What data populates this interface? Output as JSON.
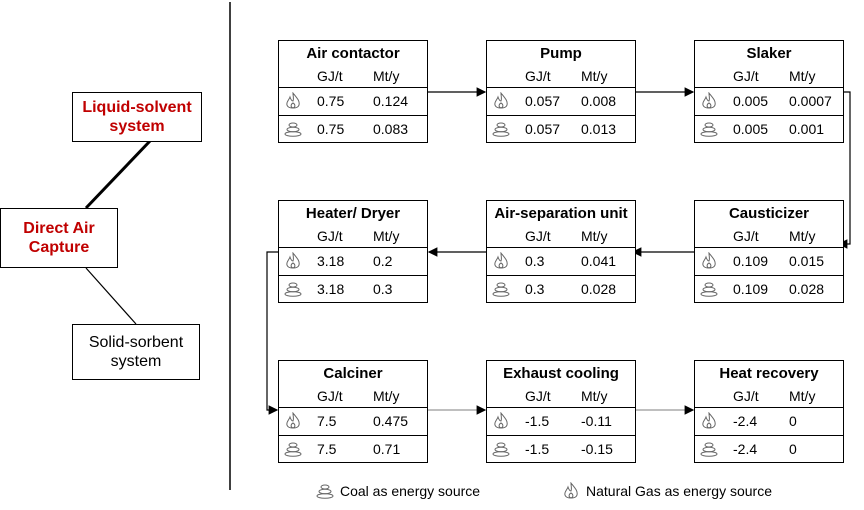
{
  "tree": {
    "root": "Direct Air Capture",
    "children": [
      "Liquid-solvent system",
      "Solid-sorbent system"
    ]
  },
  "columns": [
    "GJ/t",
    "Mt/y"
  ],
  "processes": [
    {
      "title": "Air contactor",
      "gas": [
        "0.75",
        "0.124"
      ],
      "coal": [
        "0.75",
        "0.083"
      ]
    },
    {
      "title": "Pump",
      "gas": [
        "0.057",
        "0.008"
      ],
      "coal": [
        "0.057",
        "0.013"
      ]
    },
    {
      "title": "Slaker",
      "gas": [
        "0.005",
        "0.0007"
      ],
      "coal": [
        "0.005",
        "0.001"
      ]
    },
    {
      "title": "Causticizer",
      "gas": [
        "0.109",
        "0.015"
      ],
      "coal": [
        "0.109",
        "0.028"
      ]
    },
    {
      "title": "Air-separation unit",
      "gas": [
        "0.3",
        "0.041"
      ],
      "coal": [
        "0.3",
        "0.028"
      ]
    },
    {
      "title": "Heater/ Dryer",
      "gas": [
        "3.18",
        "0.2"
      ],
      "coal": [
        "3.18",
        "0.3"
      ]
    },
    {
      "title": "Calciner",
      "gas": [
        "7.5",
        "0.475"
      ],
      "coal": [
        "7.5",
        "0.71"
      ]
    },
    {
      "title": "Exhaust cooling",
      "gas": [
        "-1.5",
        "-0.11"
      ],
      "coal": [
        "-1.5",
        "-0.15"
      ]
    },
    {
      "title": "Heat recovery",
      "gas": [
        "-2.4",
        "0"
      ],
      "coal": [
        "-2.4",
        "0"
      ]
    }
  ],
  "legend": {
    "coal": "Coal as energy source",
    "gas": "Natural Gas as energy source"
  }
}
